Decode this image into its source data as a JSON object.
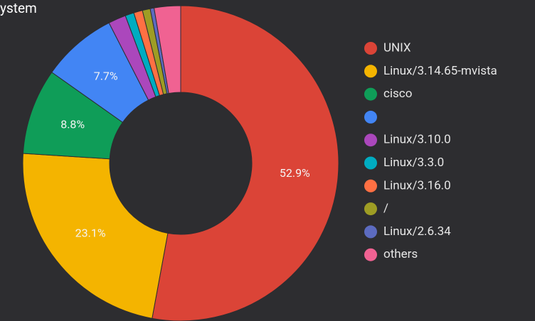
{
  "chart_data": {
    "type": "donut",
    "title": "ystem",
    "categories": [
      "UNIX",
      "Linux/3.14.65-mvista",
      "cisco",
      null,
      "Linux/3.10.0",
      "Linux/3.3.0",
      "Linux/3.16.0",
      "/",
      "Linux/2.6.34",
      "others"
    ],
    "values": [
      52.9,
      23.1,
      8.8,
      7.7,
      1.8,
      0.9,
      0.9,
      0.8,
      0.4,
      2.7
    ],
    "value_labels": [
      "52.9%",
      "23.1%",
      "8.8%",
      "7.7%",
      null,
      null,
      null,
      null,
      null,
      null
    ],
    "colors": [
      "#db4437",
      "#f4b400",
      "#0f9d58",
      "#4285f4",
      "#ab47bc",
      "#00acc1",
      "#ff7043",
      "#9e9d24",
      "#5c6bc0",
      "#f06292"
    ],
    "legend": "right"
  }
}
